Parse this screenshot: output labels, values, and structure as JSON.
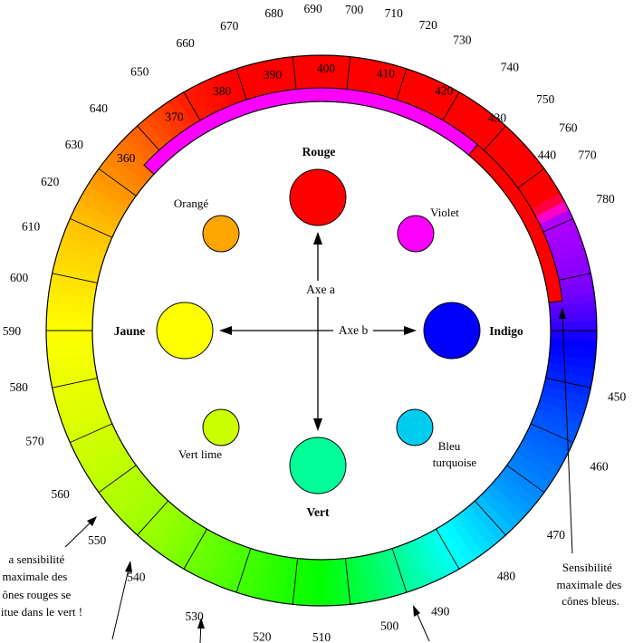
{
  "wavelength_labels": [
    {
      "nm": "690"
    },
    {
      "nm": "700"
    },
    {
      "nm": "710"
    },
    {
      "nm": "720"
    },
    {
      "nm": "730"
    },
    {
      "nm": "740"
    },
    {
      "nm": "750"
    },
    {
      "nm": "760"
    },
    {
      "nm": "770"
    },
    {
      "nm": "780"
    },
    {
      "nm": "680"
    },
    {
      "nm": "670"
    },
    {
      "nm": "660"
    },
    {
      "nm": "650"
    },
    {
      "nm": "640"
    },
    {
      "nm": "630"
    },
    {
      "nm": "620"
    },
    {
      "nm": "610"
    },
    {
      "nm": "600"
    },
    {
      "nm": "590"
    },
    {
      "nm": "580"
    },
    {
      "nm": "570"
    },
    {
      "nm": "560"
    },
    {
      "nm": "550"
    },
    {
      "nm": "540"
    },
    {
      "nm": "530"
    },
    {
      "nm": "520"
    },
    {
      "nm": "510"
    },
    {
      "nm": "500"
    },
    {
      "nm": "490"
    },
    {
      "nm": "480"
    },
    {
      "nm": "470"
    },
    {
      "nm": "460"
    },
    {
      "nm": "450"
    },
    {
      "nm": "440"
    },
    {
      "nm": "430"
    },
    {
      "nm": "420"
    },
    {
      "nm": "410"
    },
    {
      "nm": "400"
    },
    {
      "nm": "390"
    },
    {
      "nm": "380"
    },
    {
      "nm": "370"
    },
    {
      "nm": "360"
    }
  ],
  "colour_circles": [
    {
      "label": "Rouge",
      "color": "#ff0000",
      "bold": true
    },
    {
      "label": "Orangé",
      "color": "#ffa500",
      "bold": false
    },
    {
      "label": "Violet",
      "color": "#ff00ff",
      "bold": false
    },
    {
      "label": "Jaune",
      "color": "#ffff00",
      "bold": true
    },
    {
      "label": "Indigo",
      "color": "#0000ff",
      "bold": true
    },
    {
      "label": "Vert lime",
      "color": "#ccff00",
      "bold": false
    },
    {
      "label": "Bleu turquoise",
      "color": "#00ccee",
      "bold": false
    },
    {
      "label": "Vert",
      "color": "#00ff99",
      "bold": true
    }
  ],
  "axes": {
    "a": "Axe a",
    "b": "Axe b"
  },
  "notes": {
    "red_cones": [
      "a sensibilité",
      "maximale des",
      "ônes rouges se",
      "itue dans le vert !"
    ],
    "blue_cones": [
      "Sensibilité",
      "maximale des",
      "cônes bleus."
    ]
  },
  "colors": {
    "magenta_arc": "#ff00ff",
    "red_arc": "#ff0000",
    "wheel_outline": "#000000"
  }
}
